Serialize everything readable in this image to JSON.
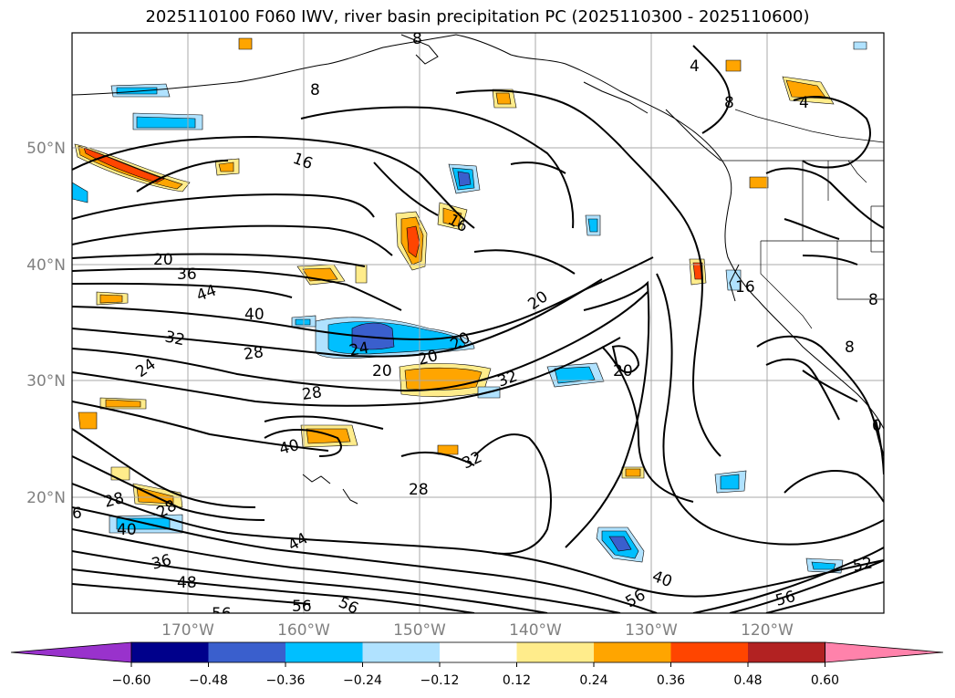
{
  "title": "2025110100 F060 IWV, river basin precipitation PC (2025110300 - 2025110600)",
  "axes": {
    "lat_ticks": [
      "50°N",
      "40°N",
      "30°N",
      "20°N"
    ],
    "lon_ticks": [
      "170°W",
      "160°W",
      "150°W",
      "140°W",
      "130°W",
      "120°W"
    ]
  },
  "contour_labels": [
    "8",
    "4",
    "8",
    "4",
    "16",
    "16",
    "20",
    "36",
    "44",
    "40",
    "32",
    "28",
    "24",
    "24",
    "20",
    "20",
    "20",
    "20",
    "28",
    "32",
    "20",
    "40",
    "32",
    "28",
    "28",
    "28",
    "40",
    "44",
    "36",
    "48",
    "56",
    "56",
    "56",
    "40",
    "56",
    "52",
    "16",
    "8",
    "8",
    "6",
    "8",
    "0"
  ],
  "colorbar": {
    "colors": [
      "#9932cc",
      "#00008b",
      "#3a5fcd",
      "#00bfff",
      "#b0e2ff",
      "#ffffff",
      "#ffec8b",
      "#ffa500",
      "#ff4500",
      "#b22222",
      "#ff82ab"
    ],
    "tick_labels": [
      "−0.60",
      "−0.48",
      "−0.36",
      "−0.24",
      "−0.12",
      "0.12",
      "0.24",
      "0.36",
      "0.48",
      "0.60"
    ]
  }
}
